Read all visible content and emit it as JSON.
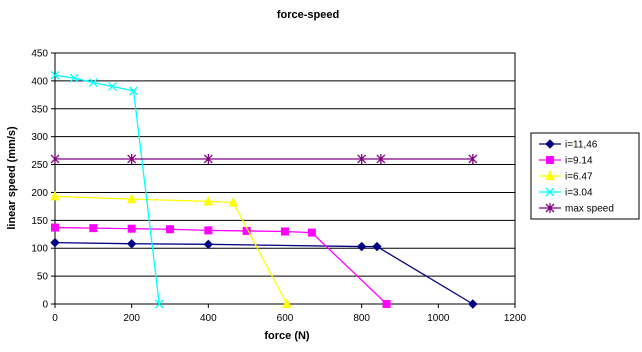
{
  "chart_data": {
    "type": "line",
    "title": "force-speed",
    "xlabel": "force  (N)",
    "ylabel": "linear speed (mm/s)",
    "xlim": [
      0,
      1200
    ],
    "ylim": [
      0,
      450
    ],
    "xticks": [
      0,
      200,
      400,
      600,
      800,
      1000,
      1200
    ],
    "yticks": [
      0,
      50,
      100,
      150,
      200,
      250,
      300,
      350,
      400,
      450
    ],
    "grid": "horizontal",
    "legend_position": "right",
    "series": [
      {
        "name": "i=11,46",
        "color": "#000080",
        "marker": "diamond",
        "points": [
          [
            0,
            110
          ],
          [
            200,
            108
          ],
          [
            400,
            107
          ],
          [
            800,
            103
          ],
          [
            840,
            103
          ],
          [
            1090,
            0
          ]
        ]
      },
      {
        "name": "i=9.14",
        "color": "#ff00ff",
        "marker": "square",
        "points": [
          [
            0,
            137
          ],
          [
            100,
            136
          ],
          [
            200,
            135
          ],
          [
            300,
            134
          ],
          [
            400,
            132
          ],
          [
            500,
            131
          ],
          [
            600,
            130
          ],
          [
            670,
            128
          ],
          [
            865,
            0
          ]
        ]
      },
      {
        "name": "i=6.47",
        "color": "#ffff00",
        "marker": "triangle",
        "points": [
          [
            0,
            193
          ],
          [
            200,
            188
          ],
          [
            400,
            184
          ],
          [
            465,
            182
          ],
          [
            605,
            0
          ]
        ]
      },
      {
        "name": "i=3.04",
        "color": "#00ffff",
        "marker": "x",
        "points": [
          [
            0,
            410
          ],
          [
            50,
            405
          ],
          [
            100,
            397
          ],
          [
            150,
            390
          ],
          [
            205,
            382
          ],
          [
            272,
            0
          ]
        ]
      },
      {
        "name": "max speed",
        "color": "#800080",
        "marker": "star",
        "points": [
          [
            0,
            260
          ],
          [
            200,
            260
          ],
          [
            400,
            260
          ],
          [
            800,
            260
          ],
          [
            850,
            260
          ],
          [
            1090,
            260
          ]
        ]
      }
    ]
  }
}
